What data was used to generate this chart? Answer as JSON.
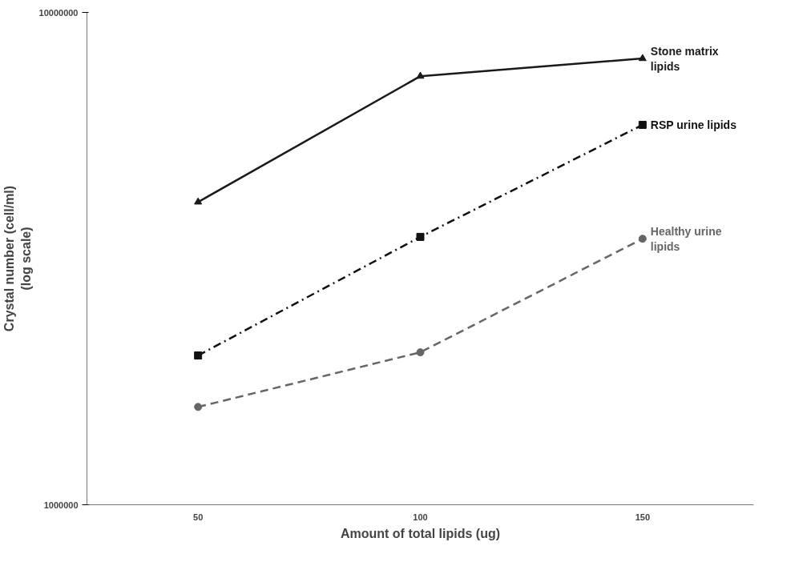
{
  "chart_data": {
    "type": "line",
    "xlabel": "Amount of total lipids (ug)",
    "ylabel": "Crystal number (cell/ml)\n(log scale)",
    "x": [
      50,
      100,
      150
    ],
    "log": true,
    "grid": false,
    "xlim": [
      25,
      175
    ],
    "xticks": [
      50,
      100,
      150
    ],
    "ylim": [
      1000000,
      10000000
    ],
    "yticks": [
      1000000,
      10000000
    ],
    "series": [
      {
        "name": "Stone matrix lipids",
        "color": "#1a1a1a",
        "marker": "triangle",
        "line_style": "solid",
        "values": [
          4120000,
          7420000,
          8060000
        ]
      },
      {
        "name": "RSP urine lipids",
        "color": "#111111",
        "marker": "square",
        "line_style": "dashdot",
        "values": [
          2010000,
          3500000,
          5910000
        ]
      },
      {
        "name": "Healthy urine lipids",
        "color": "#666666",
        "marker": "circle",
        "line_style": "dashed",
        "values": [
          1580000,
          2040000,
          3470000
        ]
      }
    ]
  }
}
